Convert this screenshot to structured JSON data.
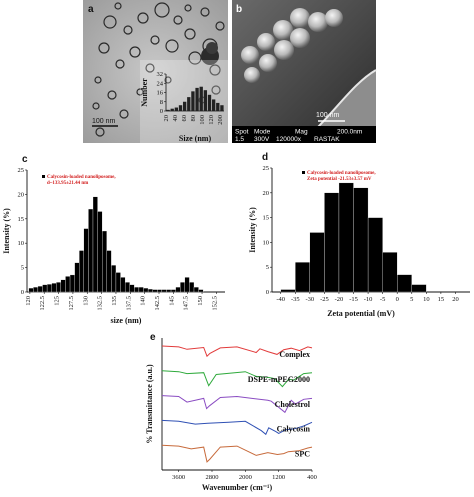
{
  "panels": {
    "a": {
      "letter": "a",
      "scalebar": "100 nm"
    },
    "b": {
      "letter": "b",
      "scalebar": "100 nm",
      "info_row1": [
        "Spot",
        "Mode",
        "Mag",
        "200.0nm"
      ],
      "info_row2": [
        "1.5",
        "300V",
        "120000x",
        "RASTAK"
      ]
    },
    "c": {
      "letter": "c"
    },
    "d": {
      "letter": "d"
    },
    "e": {
      "letter": "e"
    }
  },
  "chart_data": [
    {
      "id": "a-inset",
      "type": "bar",
      "xlabel": "Size (nm)",
      "ylabel": "Number",
      "x_ticks": [
        "20",
        "40",
        "60",
        "80",
        "100",
        "120",
        "200"
      ],
      "y_ticks": [
        "0",
        "8",
        "16",
        "24",
        "32"
      ],
      "ylim": [
        0,
        32
      ],
      "values": [
        1,
        2,
        3,
        5,
        8,
        12,
        17,
        20,
        21,
        18,
        14,
        10,
        7,
        5
      ]
    },
    {
      "id": "c",
      "type": "bar",
      "legend": [
        "Calycosin-loaded nanoliposome,",
        "d~133.95±21.44 nm"
      ],
      "xlabel": "size (nm)",
      "ylabel": "Intensity (%)",
      "ylim": [
        0,
        25
      ],
      "y_ticks": [
        "0",
        "5",
        "10",
        "15",
        "20",
        "25"
      ],
      "x_ticks": [
        "120",
        "122.5",
        "125",
        "127.5",
        "130",
        "132.5",
        "135",
        "137.5",
        "140",
        "142.5",
        "145",
        "147.5",
        "150",
        "152.5"
      ],
      "x_tick_values": [
        120,
        122.5,
        125,
        127.5,
        130,
        132.5,
        135,
        137.5,
        140,
        142.5,
        145,
        147.5,
        150,
        152.5
      ],
      "bin_width": 0.8,
      "x": [
        119.8,
        120.6,
        121.4,
        122.2,
        123.0,
        123.8,
        124.6,
        125.4,
        126.2,
        127.0,
        127.8,
        128.6,
        129.4,
        130.2,
        131.0,
        131.8,
        132.6,
        133.4,
        134.2,
        135.0,
        135.8,
        136.6,
        137.4,
        138.2,
        139.0,
        139.8,
        140.6,
        141.4,
        142.2,
        143.0,
        143.8,
        144.6,
        145.4,
        146.2,
        147.0,
        147.8,
        148.6,
        149.4
      ],
      "values": [
        0.8,
        1.0,
        1.2,
        1.5,
        1.6,
        1.8,
        2.0,
        2.5,
        3.2,
        3.5,
        6.0,
        8.5,
        13.0,
        17.0,
        19.5,
        16.5,
        12.5,
        8.5,
        5.5,
        4.0,
        3.0,
        2.0,
        1.5,
        1.0,
        1.0,
        0.8,
        0.6,
        0.5,
        0.5,
        0.5,
        0.5,
        0.5,
        1.0,
        2.0,
        3.0,
        2.0,
        1.0,
        0.5
      ]
    },
    {
      "id": "d",
      "type": "bar",
      "legend": [
        "Calycosin-loaded nanoliposome,",
        "Zeta potential -21.53±3.57 mV"
      ],
      "xlabel": "Zeta potential (mV)",
      "ylabel": "Intensity (%)",
      "ylim": [
        0,
        25
      ],
      "y_ticks": [
        "0",
        "5",
        "10",
        "15",
        "20",
        "25"
      ],
      "x_ticks": [
        "-40",
        "-35",
        "-30",
        "-25",
        "-20",
        "-15",
        "-10",
        "-5",
        "0",
        "5",
        "10",
        "15",
        "20"
      ],
      "x_tick_values": [
        -40,
        -35,
        -30,
        -25,
        -20,
        -15,
        -10,
        -5,
        0,
        5,
        10,
        15,
        20
      ],
      "bin_width": 5,
      "x": [
        -40,
        -35,
        -30,
        -25,
        -20,
        -15,
        -10,
        -5,
        0,
        5
      ],
      "values": [
        0.5,
        6,
        12,
        20,
        22,
        21,
        15,
        8,
        3.5,
        1.5
      ]
    },
    {
      "id": "e",
      "type": "line",
      "xlabel": "Wavenumber (cm⁻¹)",
      "ylabel": "% Transmittance (a.u.)",
      "x_ticks": [
        "3600",
        "2800",
        "2000",
        "1200",
        "400"
      ],
      "x_tick_values": [
        3600,
        2800,
        2000,
        1200,
        400
      ],
      "xlim": [
        4000,
        400
      ],
      "series": [
        {
          "name": "Complex",
          "color": "#e23b3b",
          "offset": 0.0,
          "x": [
            4000,
            3600,
            3400,
            3000,
            2920,
            2850,
            2600,
            2200,
            1740,
            1650,
            1460,
            1240,
            1080,
            900,
            700,
            500,
            400
          ],
          "y": [
            0.0,
            0.05,
            0.18,
            0.08,
            0.55,
            0.4,
            0.1,
            0.05,
            0.35,
            0.15,
            0.3,
            0.45,
            0.2,
            0.12,
            0.25,
            0.05,
            0.1
          ]
        },
        {
          "name": "DSPE-mPEG2000",
          "color": "#2faa3c",
          "offset": 1.0,
          "x": [
            4000,
            3600,
            3400,
            3000,
            2880,
            2700,
            2000,
            1740,
            1470,
            1340,
            1280,
            1110,
            960,
            840,
            600,
            400
          ],
          "y": [
            0.0,
            0.05,
            0.15,
            0.1,
            0.8,
            0.2,
            0.05,
            0.3,
            0.35,
            0.4,
            0.45,
            0.85,
            0.45,
            0.5,
            0.15,
            0.1
          ]
        },
        {
          "name": "Cholestrol",
          "color": "#8a4cc2",
          "offset": 2.0,
          "x": [
            4000,
            3600,
            3400,
            3000,
            2930,
            2860,
            2600,
            2200,
            1460,
            1380,
            1050,
            900,
            800,
            600,
            400
          ],
          "y": [
            0.0,
            0.05,
            0.35,
            0.15,
            0.7,
            0.55,
            0.1,
            0.05,
            0.25,
            0.3,
            0.9,
            0.25,
            0.45,
            0.2,
            0.15
          ]
        },
        {
          "name": "Calycosin",
          "color": "#2f50b4",
          "offset": 3.0,
          "x": [
            4000,
            3600,
            3200,
            2900,
            2400,
            2000,
            1620,
            1510,
            1440,
            1270,
            1200,
            1030,
            820,
            600,
            400
          ],
          "y": [
            0.0,
            0.05,
            0.2,
            0.15,
            0.1,
            0.05,
            0.55,
            0.75,
            0.4,
            0.6,
            0.7,
            0.5,
            0.45,
            0.3,
            0.1
          ]
        },
        {
          "name": "SPC",
          "color": "#c76a3b",
          "offset": 4.0,
          "x": [
            4000,
            3600,
            3300,
            3000,
            2920,
            2850,
            2600,
            2200,
            1740,
            1460,
            1230,
            1080,
            970,
            720,
            500,
            400
          ],
          "y": [
            0.0,
            0.05,
            0.2,
            0.1,
            0.9,
            0.75,
            0.1,
            0.05,
            0.55,
            0.4,
            0.5,
            0.45,
            0.35,
            0.3,
            0.15,
            0.1
          ]
        }
      ]
    }
  ]
}
